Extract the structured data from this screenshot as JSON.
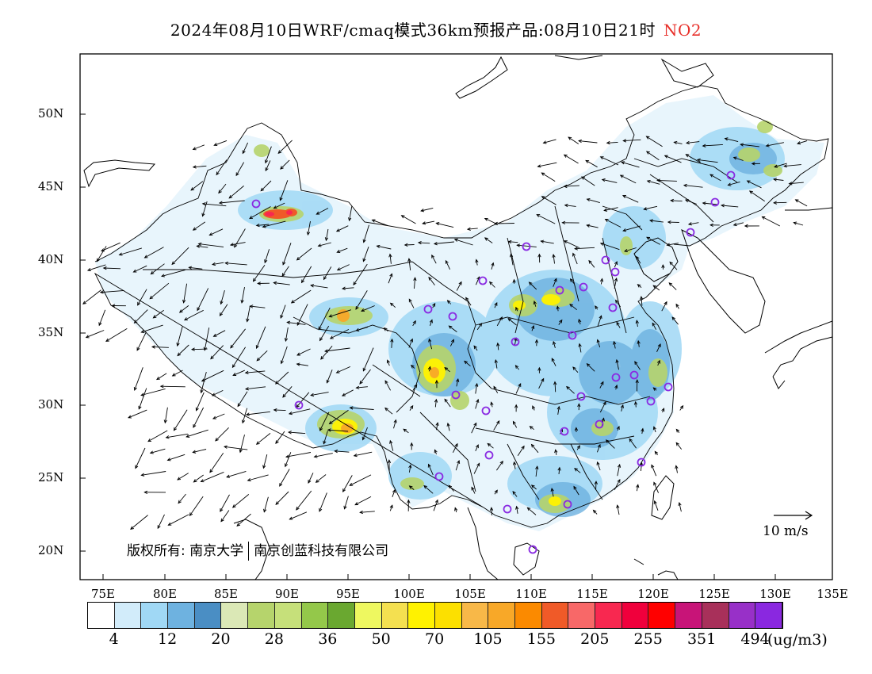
{
  "title": {
    "main": "2024年08月10日WRF/cmaq模式36km预报产品:08月10日21时",
    "species": "NO2"
  },
  "copyright": {
    "prefix": "版权所有:",
    "org1": "南京大学",
    "org2": "南京创蓝科技有限公司"
  },
  "wind_reference": {
    "label": "10 m/s",
    "speed_ms": 10
  },
  "axes": {
    "lat_labels": [
      "50N",
      "45N",
      "40N",
      "35N",
      "30N",
      "25N",
      "20N"
    ],
    "lon_labels": [
      "75E",
      "80E",
      "85E",
      "90E",
      "95E",
      "100E",
      "105E",
      "110E",
      "115E",
      "120E",
      "125E",
      "130E",
      "135E"
    ]
  },
  "colorbar": {
    "colors": [
      "#ffffff",
      "#d2ecfa",
      "#a0d8f5",
      "#6eb2e0",
      "#4a8ec4",
      "#dbe8b6",
      "#b6d46c",
      "#c6e07a",
      "#94c84a",
      "#6aa830",
      "#eef860",
      "#f4e050",
      "#fff200",
      "#fce000",
      "#f8b848",
      "#f8a828",
      "#fb8a00",
      "#f05a28",
      "#f86868",
      "#f82850",
      "#f0003c",
      "#ff0000",
      "#c81478",
      "#a8305a",
      "#9830c8",
      "#8a28e0"
    ],
    "labels": [
      "4",
      "12",
      "20",
      "28",
      "36",
      "50",
      "70",
      "105",
      "155",
      "205",
      "255",
      "351",
      "494"
    ],
    "unit": "(ug/m3)"
  },
  "colors": {
    "species_title": "#e8302a",
    "station_marker": "#8a2be2"
  }
}
